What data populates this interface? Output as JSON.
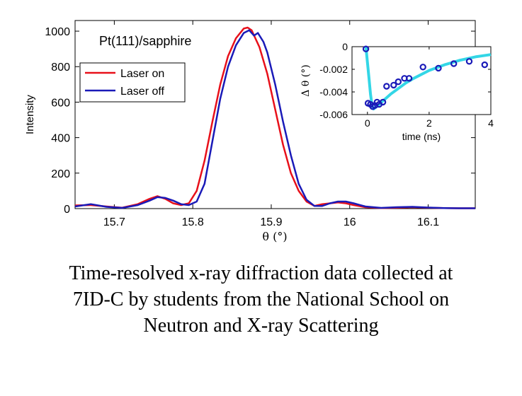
{
  "caption": {
    "line1": "Time-resolved x-ray diffraction data collected at",
    "line2": "7ID-C by students from the National School on",
    "line3": "Neutron and X-ray Scattering"
  },
  "colors": {
    "laser_on": "#e8101a",
    "laser_off": "#1a1ab8",
    "inset_fit": "#33d6e6",
    "inset_points": "#1a1ab8"
  },
  "chart_data": [
    {
      "type": "line",
      "annotation": "Pt(111)/sapphire",
      "xlabel": "θ (°)",
      "ylabel": "Intensity",
      "xlim": [
        15.65,
        16.16
      ],
      "ylim": [
        0,
        1060
      ],
      "xticks": [
        15.7,
        15.8,
        15.9,
        16,
        16.1
      ],
      "xtick_labels": [
        "15.7",
        "15.8",
        "15.9",
        "16",
        "16.1"
      ],
      "yticks": [
        0,
        200,
        400,
        600,
        800,
        1000
      ],
      "ytick_labels": [
        "0",
        "200",
        "400",
        "600",
        "800",
        "1000"
      ],
      "legend_position": "top-left",
      "grid": false,
      "series": [
        {
          "name": "Laser on",
          "x": [
            15.65,
            15.67,
            15.69,
            15.71,
            15.73,
            15.745,
            15.755,
            15.765,
            15.775,
            15.785,
            15.795,
            15.805,
            15.815,
            15.825,
            15.835,
            15.845,
            15.855,
            15.865,
            15.87,
            15.875,
            15.885,
            15.895,
            15.905,
            15.915,
            15.925,
            15.935,
            15.945,
            15.955,
            15.965,
            15.975,
            15.985,
            15.995,
            16.005,
            16.02,
            16.04,
            16.06,
            16.08,
            16.1,
            16.12,
            16.14,
            16.16
          ],
          "y": [
            18,
            20,
            12,
            5,
            25,
            55,
            70,
            55,
            30,
            20,
            30,
            100,
            270,
            490,
            700,
            860,
            960,
            1015,
            1020,
            1005,
            910,
            760,
            560,
            360,
            200,
            100,
            40,
            15,
            25,
            30,
            35,
            30,
            20,
            8,
            3,
            5,
            8,
            5,
            3,
            2,
            2
          ]
        },
        {
          "name": "Laser off",
          "x": [
            15.65,
            15.67,
            15.69,
            15.71,
            15.73,
            15.745,
            15.755,
            15.765,
            15.775,
            15.785,
            15.795,
            15.805,
            15.815,
            15.825,
            15.835,
            15.845,
            15.855,
            15.865,
            15.872,
            15.878,
            15.883,
            15.89,
            15.895,
            15.905,
            15.915,
            15.925,
            15.935,
            15.945,
            15.955,
            15.965,
            15.975,
            15.985,
            15.995,
            16.005,
            16.02,
            16.04,
            16.06,
            16.08,
            16.1,
            16.12,
            16.14,
            16.16
          ],
          "y": [
            12,
            25,
            10,
            4,
            20,
            45,
            65,
            60,
            45,
            25,
            20,
            40,
            140,
            380,
            620,
            800,
            920,
            990,
            1005,
            975,
            990,
            940,
            880,
            700,
            490,
            300,
            140,
            50,
            15,
            15,
            30,
            40,
            40,
            30,
            12,
            4,
            8,
            10,
            6,
            3,
            2,
            2
          ]
        }
      ]
    },
    {
      "type": "scatter",
      "xlabel": "time (ns)",
      "ylabel": "Δ θ (°)",
      "xlim": [
        -0.5,
        4
      ],
      "ylim": [
        -0.006,
        0
      ],
      "xticks": [
        0,
        2,
        4
      ],
      "xtick_labels": [
        "0",
        "2",
        "4"
      ],
      "yticks": [
        0,
        -0.002,
        -0.004,
        -0.006
      ],
      "ytick_labels": [
        "0",
        "-0.002",
        "-0.004",
        "-0.006"
      ],
      "series": [
        {
          "name": "",
          "marker": "open-circle",
          "x": [
            -0.05,
            0.02,
            0.1,
            0.17,
            0.24,
            0.31,
            0.38,
            0.5,
            0.62,
            0.85,
            1.0,
            1.2,
            1.35,
            1.8,
            2.3,
            2.8,
            3.3,
            3.8
          ],
          "y": [
            -0.0002,
            -0.005,
            -0.0051,
            -0.0053,
            -0.0052,
            -0.0049,
            -0.0051,
            -0.0049,
            -0.0035,
            -0.0034,
            -0.0031,
            -0.0028,
            -0.0028,
            -0.0018,
            -0.0019,
            -0.0015,
            -0.0013,
            -0.0016
          ]
        },
        {
          "name": "",
          "type": "line",
          "x": [
            -0.05,
            0.0,
            0.05,
            0.1,
            0.15,
            0.2,
            0.3,
            0.5,
            0.75,
            1.0,
            1.25,
            1.5,
            2.0,
            2.5,
            3.0,
            3.5,
            4.0
          ],
          "y": [
            0,
            -0.0014,
            -0.0028,
            -0.0042,
            -0.0052,
            -0.0055,
            -0.0053,
            -0.0048,
            -0.0042,
            -0.0037,
            -0.0032,
            -0.0028,
            -0.0021,
            -0.0016,
            -0.0012,
            -0.0009,
            -0.0007
          ]
        }
      ]
    }
  ]
}
